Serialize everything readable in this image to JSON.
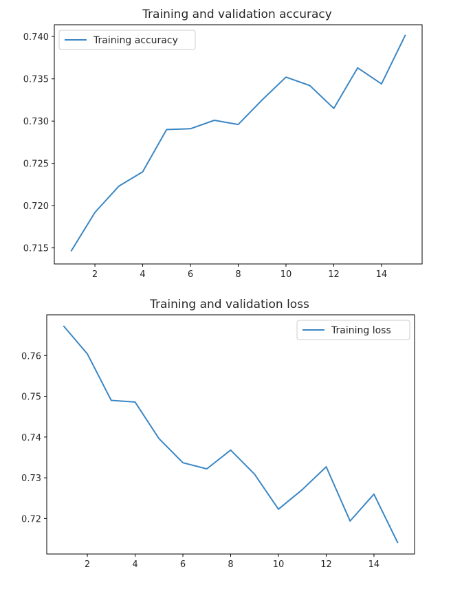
{
  "chart_data": [
    {
      "type": "line",
      "title": "Training and validation accuracy",
      "xlabel": "",
      "ylabel": "",
      "x": [
        1,
        2,
        3,
        4,
        5,
        6,
        7,
        8,
        9,
        10,
        11,
        12,
        13,
        14,
        15
      ],
      "series": [
        {
          "name": "Training accuracy",
          "values": [
            0.7146,
            0.7192,
            0.7223,
            0.724,
            0.729,
            0.7291,
            0.7301,
            0.7296,
            0.7325,
            0.7352,
            0.7342,
            0.7315,
            0.7363,
            0.7344,
            0.7402
          ],
          "color": "#3a86c3"
        }
      ],
      "xlim": [
        0.3,
        15.7
      ],
      "ylim": [
        0.7131,
        0.7414
      ],
      "xticks": [
        2,
        4,
        6,
        8,
        10,
        12,
        14
      ],
      "yticks": [
        0.715,
        0.72,
        0.725,
        0.73,
        0.735,
        0.74
      ],
      "ytick_labels": [
        "0.715",
        "0.720",
        "0.725",
        "0.730",
        "0.735",
        "0.740"
      ],
      "grid": false,
      "legend": "upper left"
    },
    {
      "type": "line",
      "title": "Training  and validation loss",
      "xlabel": "",
      "ylabel": "",
      "x": [
        1,
        2,
        3,
        4,
        5,
        6,
        7,
        8,
        9,
        10,
        11,
        12,
        13,
        14,
        15
      ],
      "series": [
        {
          "name": "Training loss",
          "values": [
            0.7673,
            0.7604,
            0.749,
            0.7486,
            0.7396,
            0.7337,
            0.7322,
            0.7368,
            0.7309,
            0.7223,
            0.7271,
            0.7327,
            0.7194,
            0.726,
            0.714
          ],
          "color": "#3a86c3"
        }
      ],
      "xlim": [
        0.3,
        15.7
      ],
      "ylim": [
        0.7113,
        0.77
      ],
      "xticks": [
        2,
        4,
        6,
        8,
        10,
        12,
        14
      ],
      "yticks": [
        0.72,
        0.73,
        0.74,
        0.75,
        0.76
      ],
      "ytick_labels": [
        "0.72",
        "0.73",
        "0.74",
        "0.75",
        "0.76"
      ],
      "grid": false,
      "legend": "upper right"
    }
  ]
}
